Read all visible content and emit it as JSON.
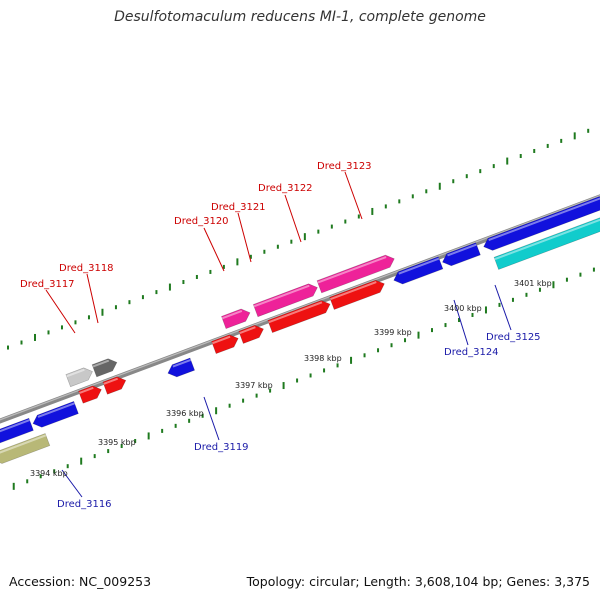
{
  "header": {
    "title": "Desulfotomaculum reducens MI-1, complete genome"
  },
  "footer": {
    "accession": "Accession: NC_009253",
    "summary": "Topology: circular; Length: 3,608,104 bp; Genes: 3,375"
  },
  "colors": {
    "backbone": "#888888",
    "tick": "#1f7a1f",
    "red": "#ee1111",
    "magenta": "#ee2299",
    "blue": "#1111dd",
    "cyan": "#11cccc",
    "olive": "#b8b877",
    "gray_light": "#c8c8c8",
    "gray_dark": "#666666"
  },
  "scale_labels": [
    "3394 kbp",
    "3395 kbp",
    "3396 kbp",
    "3397 kbp",
    "3398 kbp",
    "3399 kbp",
    "3400 kbp",
    "3401 kbp"
  ],
  "gene_labels": {
    "forward": [
      "Dred_3117",
      "Dred_3118",
      "Dred_3120",
      "Dred_3121",
      "Dred_3122",
      "Dred_3123"
    ],
    "reverse": [
      "Dred_3116",
      "Dred_3119",
      "Dred_3124",
      "Dred_3125"
    ]
  }
}
